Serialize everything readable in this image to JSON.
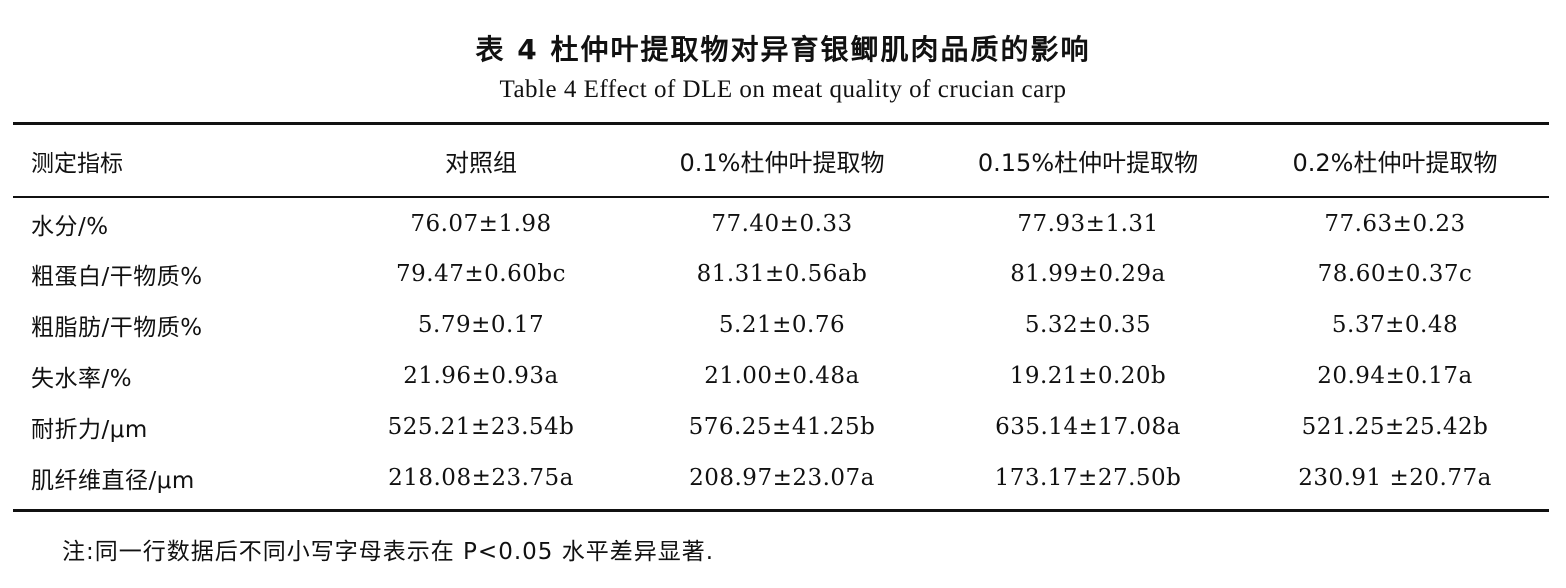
{
  "title_cn": "表 4   杜仲叶提取物对异育银鲫肌肉品质的影响",
  "title_en": "Table 4   Effect of DLE on meat quality of crucian carp",
  "headers": [
    "测定指标",
    "对照组",
    "0.1%杜仲叶提取物",
    "0.15%杜仲叶提取物",
    "0.2%杜仲叶提取物"
  ],
  "rows": [
    [
      "水分/%",
      "76.07±1.98",
      "77.40±0.33",
      "77.93±1.31",
      "77.63±0.23"
    ],
    [
      "粗蛋白/干物质%",
      "79.47±0.60bc",
      "81.31±0.56ab",
      "81.99±0.29a",
      "78.60±0.37c"
    ],
    [
      "粗脂肪/干物质%",
      "5.79±0.17",
      "5.21±0.76",
      "5.32±0.35",
      "5.37±0.48"
    ],
    [
      "失水率/%",
      "21.96±0.93a",
      "21.00±0.48a",
      "19.21±0.20b",
      "20.94±0.17a"
    ],
    [
      "耐折力/μm",
      "525.21±23.54b",
      "576.25±41.25b",
      "635.14±17.08a",
      "521.25±25.42b"
    ],
    [
      "肌纤维直径/μm",
      "218.08±23.75a",
      "208.97±23.07a",
      "173.17±27.50b",
      "230.91 ±20.77a"
    ]
  ],
  "note": "注:同一行数据后不同小写字母表示在 P<0.05 水平差异显著."
}
